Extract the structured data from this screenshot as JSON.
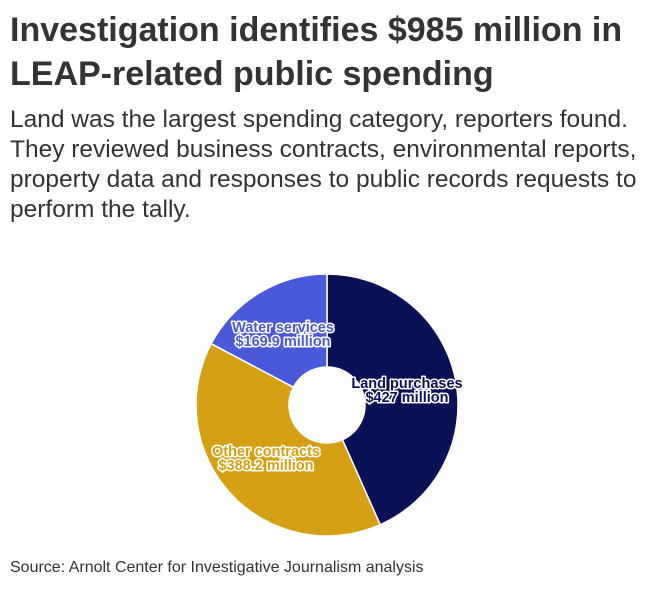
{
  "header": {
    "title": "Investigation identifies $985 million in LEAP-related public spending",
    "subtitle": "Land was the largest spending category, reporters found. They reviewed business contracts, environmental reports, property data and responses to public records requests to perform the tally."
  },
  "footer": {
    "source": "Source: Arnolt Center for Investigative Journalism analysis"
  },
  "chart_data": {
    "type": "pie",
    "donut": true,
    "units": "$ million",
    "slices": [
      {
        "label": "Land purchases",
        "value_label": "$427 million",
        "value": 427,
        "color": "#0b1157"
      },
      {
        "label": "Other contracts",
        "value_label": "$388.2 million",
        "value": 388.2,
        "color": "#d6a014"
      },
      {
        "label": "Water services",
        "value_label": "$169.9 million",
        "value": 169.9,
        "color": "#4a59d9"
      }
    ]
  }
}
